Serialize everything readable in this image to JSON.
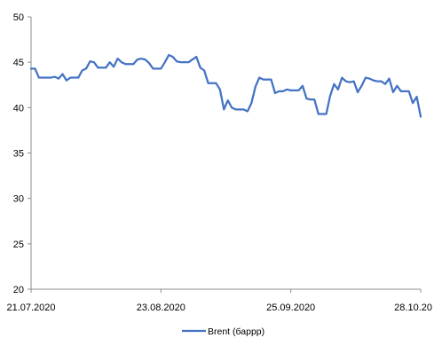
{
  "chart_data": {
    "type": "line",
    "title": "",
    "xlabel": "",
    "ylabel": "",
    "ylim": [
      20,
      50
    ],
    "y_ticks": [
      20,
      25,
      30,
      35,
      40,
      45,
      50
    ],
    "x_tick_labels": [
      "21.07.2020",
      "23.08.2020",
      "25.09.2020",
      "28.10.20"
    ],
    "x_tick_index": [
      0,
      33,
      66,
      99
    ],
    "grid": false,
    "legend": "bottom-center",
    "line_color": "#4472c4",
    "series": [
      {
        "name": "Brent (баррр)",
        "values": [
          44.3,
          44.3,
          43.3,
          43.3,
          43.3,
          43.3,
          43.4,
          43.2,
          43.7,
          43.0,
          43.3,
          43.3,
          43.3,
          44.1,
          44.3,
          45.1,
          45.0,
          44.4,
          44.4,
          44.4,
          45.0,
          44.5,
          45.4,
          45.0,
          44.8,
          44.8,
          44.8,
          45.3,
          45.4,
          45.3,
          44.9,
          44.3,
          44.3,
          44.3,
          45.0,
          45.8,
          45.6,
          45.1,
          45.0,
          45.0,
          45.0,
          45.3,
          45.6,
          44.4,
          44.1,
          42.7,
          42.7,
          42.7,
          42.0,
          39.8,
          40.8,
          40.0,
          39.8,
          39.8,
          39.8,
          39.6,
          40.5,
          42.3,
          43.3,
          43.1,
          43.1,
          43.1,
          41.6,
          41.8,
          41.8,
          42.0,
          41.9,
          41.9,
          41.9,
          42.4,
          41.0,
          40.9,
          40.9,
          39.3,
          39.3,
          39.3,
          41.3,
          42.6,
          42.0,
          43.3,
          42.9,
          42.8,
          42.9,
          41.7,
          42.4,
          43.3,
          43.2,
          43.0,
          42.9,
          42.9,
          42.6,
          43.2,
          41.7,
          42.4,
          41.8,
          41.8,
          41.8,
          40.5,
          41.2,
          39.0
        ]
      }
    ]
  }
}
